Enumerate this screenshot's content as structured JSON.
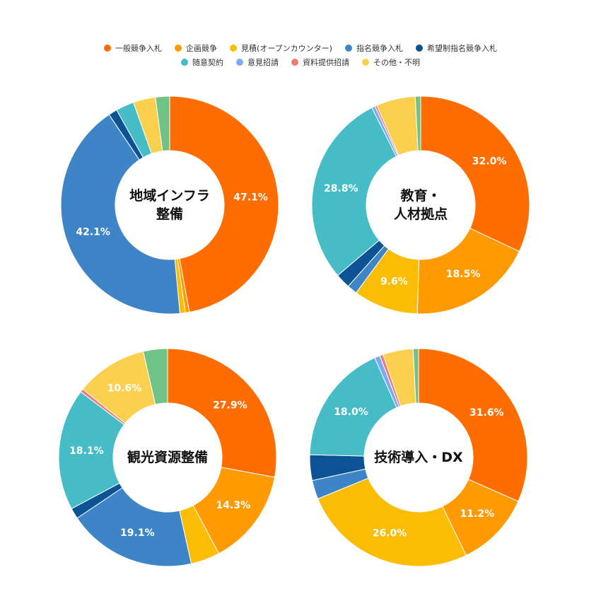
{
  "legend": {
    "rows": [
      [
        {
          "label": "一般競争入札",
          "color": "#FF6D01"
        },
        {
          "label": "企画競争",
          "color": "#FF9A00"
        },
        {
          "label": "見積(オープンカウンター)",
          "color": "#FBBC04"
        },
        {
          "label": "指名競争入札",
          "color": "#3D85C6"
        },
        {
          "label": "希望制指名競争入札",
          "color": "#0B5394"
        }
      ],
      [
        {
          "label": "随意契約",
          "color": "#46BDC6"
        },
        {
          "label": "意見招請",
          "color": "#7BAAF7"
        },
        {
          "label": "資料提供招請",
          "color": "#F07B72"
        },
        {
          "label": "その他・不明",
          "color": "#FCD04F"
        }
      ]
    ]
  },
  "chart_data": [
    {
      "type": "pie",
      "center_title_lines": [
        "地域インフラ",
        "整備"
      ],
      "slices": [
        {
          "category": "一般競争入札",
          "value": 47.1,
          "label": "47.1%",
          "color": "#FF6D01"
        },
        {
          "category": "企画競争",
          "value": 0.6,
          "label": "",
          "color": "#FF9A00"
        },
        {
          "category": "見積(オープンカウンター)",
          "value": 0.8,
          "label": "",
          "color": "#FBBC04"
        },
        {
          "category": "指名競争入札",
          "value": 42.1,
          "label": "42.1%",
          "color": "#3D85C6"
        },
        {
          "category": "希望制指名競争入札",
          "value": 1.3,
          "label": "",
          "color": "#0B5394"
        },
        {
          "category": "随意契約",
          "value": 2.7,
          "label": "",
          "color": "#46BDC6"
        },
        {
          "category": "その他・不明",
          "value": 3.3,
          "label": "",
          "color": "#FCD04F"
        },
        {
          "category": "",
          "value": 2.1,
          "label": "",
          "color": "#71C287"
        }
      ]
    },
    {
      "type": "pie",
      "center_title_lines": [
        "教育・",
        "人材拠点"
      ],
      "slices": [
        {
          "category": "一般競争入札",
          "value": 32.0,
          "label": "32.0%",
          "color": "#FF6D01"
        },
        {
          "category": "企画競争",
          "value": 18.5,
          "label": "18.5%",
          "color": "#FF9A00"
        },
        {
          "category": "見積(オープンカウンター)",
          "value": 9.6,
          "label": "9.6%",
          "color": "#FBBC04"
        },
        {
          "category": "指名競争入札",
          "value": 1.5,
          "label": "",
          "color": "#3D85C6"
        },
        {
          "category": "希望制指名競争入札",
          "value": 2.2,
          "label": "",
          "color": "#0B5394"
        },
        {
          "category": "随意契約",
          "value": 28.8,
          "label": "28.8%",
          "color": "#46BDC6"
        },
        {
          "category": "意見招請",
          "value": 0.5,
          "label": "",
          "color": "#7BAAF7"
        },
        {
          "category": "資料提供招請",
          "value": 0.3,
          "label": "",
          "color": "#F07B72"
        },
        {
          "category": "その他・不明",
          "value": 5.8,
          "label": "",
          "color": "#FCD04F"
        },
        {
          "category": "",
          "value": 0.8,
          "label": "",
          "color": "#71C287"
        }
      ]
    },
    {
      "type": "pie",
      "center_title_lines": [
        "観光資源整備"
      ],
      "slices": [
        {
          "category": "一般競争入札",
          "value": 27.9,
          "label": "27.9%",
          "color": "#FF6D01"
        },
        {
          "category": "企画競争",
          "value": 14.3,
          "label": "14.3%",
          "color": "#FF9A00"
        },
        {
          "category": "見積(オープンカウンター)",
          "value": 4.3,
          "label": "",
          "color": "#FBBC04"
        },
        {
          "category": "指名競争入札",
          "value": 19.1,
          "label": "19.1%",
          "color": "#3D85C6"
        },
        {
          "category": "希望制指名競争入札",
          "value": 1.6,
          "label": "",
          "color": "#0B5394"
        },
        {
          "category": "随意契約",
          "value": 18.1,
          "label": "18.1%",
          "color": "#46BDC6"
        },
        {
          "category": "資料提供招請",
          "value": 0.5,
          "label": "",
          "color": "#F07B72"
        },
        {
          "category": "その他・不明",
          "value": 10.6,
          "label": "10.6%",
          "color": "#FCD04F"
        },
        {
          "category": "",
          "value": 3.6,
          "label": "",
          "color": "#71C287"
        }
      ]
    },
    {
      "type": "pie",
      "center_title_lines": [
        "技術導入・DX"
      ],
      "slices": [
        {
          "category": "一般競争入札",
          "value": 31.6,
          "label": "31.6%",
          "color": "#FF6D01"
        },
        {
          "category": "企画競争",
          "value": 11.2,
          "label": "11.2%",
          "color": "#FF9A00"
        },
        {
          "category": "見積(オープンカウンター)",
          "value": 26.0,
          "label": "26.0%",
          "color": "#FBBC04"
        },
        {
          "category": "指名競争入札",
          "value": 2.8,
          "label": "",
          "color": "#3D85C6"
        },
        {
          "category": "希望制指名競争入札",
          "value": 3.8,
          "label": "",
          "color": "#0B5394"
        },
        {
          "category": "随意契約",
          "value": 18.0,
          "label": "18.0%",
          "color": "#46BDC6"
        },
        {
          "category": "意見招請",
          "value": 0.8,
          "label": "",
          "color": "#7BAAF7"
        },
        {
          "category": "資料提供招請",
          "value": 0.5,
          "label": "",
          "color": "#F07B72"
        },
        {
          "category": "その他・不明",
          "value": 4.5,
          "label": "",
          "color": "#FCD04F"
        },
        {
          "category": "",
          "value": 0.8,
          "label": "",
          "color": "#71C287"
        }
      ]
    }
  ]
}
